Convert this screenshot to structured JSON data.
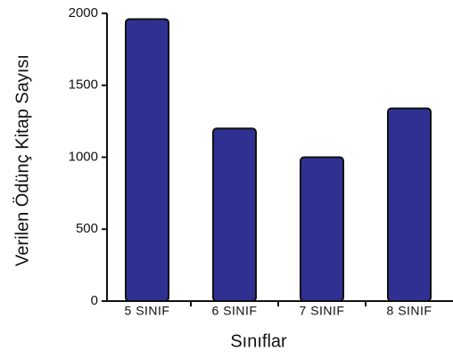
{
  "chart_data": {
    "type": "bar",
    "x_label": "Sınıflar",
    "y_label": "Verilen Ödünç Kitap Sayısı",
    "categories": [
      "5 SINIF",
      "6  SINIF",
      "7  SINIF",
      "8  SINIF"
    ],
    "values": [
      1960,
      1200,
      1000,
      1340
    ],
    "color": "#2e3192",
    "ylim": [
      0,
      2000
    ],
    "yticks": [
      0,
      500,
      1000,
      1500,
      2000
    ],
    "grid": false
  }
}
